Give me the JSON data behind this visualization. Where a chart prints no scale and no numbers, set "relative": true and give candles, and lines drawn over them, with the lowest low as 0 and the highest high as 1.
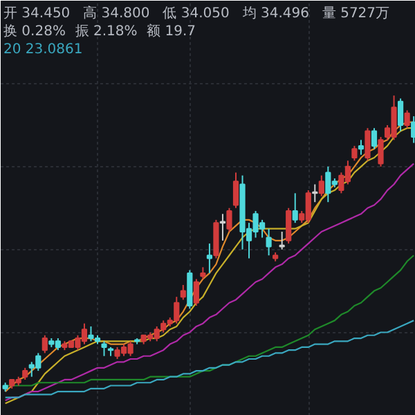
{
  "chart_data": {
    "type": "candlestick",
    "relative": true,
    "grid": true,
    "annotations": [
      "开 34.450",
      "高 34.800",
      "低 34.050",
      "均 34.496",
      "量 5727万",
      "换 0.28%",
      "振 2.18%",
      "额 19.7",
      "20 23.0861"
    ],
    "categories": [
      null,
      null,
      null,
      null,
      null,
      null,
      null,
      null,
      null,
      null,
      null,
      null,
      null,
      null,
      null,
      null,
      null,
      null,
      null,
      null,
      null,
      null,
      null,
      null,
      null,
      null,
      null,
      null,
      null,
      null,
      null,
      null,
      null,
      null,
      null,
      null,
      null,
      null,
      null,
      null,
      null,
      null,
      null,
      null,
      null,
      null,
      null,
      null,
      null,
      null,
      null,
      null,
      null,
      null,
      null,
      null,
      null,
      null,
      null,
      null,
      null,
      null,
      null
    ],
    "ohlc": [
      [
        0.02,
        0.03,
        0,
        0.01
      ],
      [
        0.02,
        0.04,
        0.01,
        0.04
      ],
      [
        0.03,
        0.05,
        0.02,
        0.04
      ],
      [
        0.05,
        0.08,
        0.04,
        0.07
      ],
      [
        0.09,
        0.1,
        0.05,
        0.08
      ],
      [
        0.12,
        0.13,
        0.07,
        0.08
      ],
      [
        0.14,
        0.19,
        0.13,
        0.18
      ],
      [
        0.17,
        0.18,
        0.15,
        0.16
      ],
      [
        0.17,
        0.18,
        0.14,
        0.15
      ],
      [
        0.15,
        0.17,
        0.14,
        0.16
      ],
      [
        0.15,
        0.17,
        0.15,
        0.17
      ],
      [
        0.15,
        0.19,
        0.14,
        0.18
      ],
      [
        0.17,
        0.23,
        0.16,
        0.21
      ],
      [
        0.19,
        0.22,
        0.17,
        0.18
      ],
      [
        0.18,
        0.19,
        0.16,
        0.17
      ],
      [
        0.16,
        0.17,
        0.12,
        0.15
      ],
      [
        0.14,
        0.15,
        0.12,
        0.14
      ],
      [
        0.12,
        0.15,
        0.11,
        0.14
      ],
      [
        0.13,
        0.16,
        0.12,
        0.15
      ],
      [
        0.13,
        0.17,
        0.12,
        0.16
      ],
      [
        0.17,
        0.18,
        0.16,
        0.17
      ],
      [
        0.17,
        0.19,
        0.16,
        0.19
      ],
      [
        0.18,
        0.2,
        0.17,
        0.19
      ],
      [
        0.18,
        0.22,
        0.17,
        0.21
      ],
      [
        0.21,
        0.24,
        0.2,
        0.23
      ],
      [
        0.23,
        0.25,
        0.22,
        0.24
      ],
      [
        0.24,
        0.32,
        0.23,
        0.3
      ],
      [
        0.32,
        0.36,
        0.31,
        0.34
      ],
      [
        0.4,
        0.41,
        0.28,
        0.29
      ],
      [
        0.3,
        0.38,
        0.29,
        0.37
      ],
      [
        0.39,
        0.42,
        0.38,
        0.4
      ],
      [
        0.46,
        0.5,
        0.4,
        0.45
      ],
      [
        0.46,
        0.58,
        0.45,
        0.57
      ],
      [
        0.57,
        0.6,
        0.51,
        0.57
      ],
      [
        0.55,
        0.62,
        0.54,
        0.61
      ],
      [
        0.63,
        0.74,
        0.62,
        0.71
      ],
      [
        0.7,
        0.73,
        0.48,
        0.54
      ],
      [
        0.55,
        0.57,
        0.45,
        0.51
      ],
      [
        0.6,
        0.61,
        0.52,
        0.54
      ],
      [
        0.57,
        0.58,
        0.52,
        0.55
      ],
      [
        0.52,
        0.55,
        0.46,
        0.49
      ],
      [
        0.45,
        0.47,
        0.44,
        0.46
      ],
      [
        0.49,
        0.54,
        0.48,
        0.49
      ],
      [
        0.51,
        0.62,
        0.5,
        0.61
      ],
      [
        0.61,
        0.67,
        0.57,
        0.58
      ],
      [
        0.58,
        0.61,
        0.57,
        0.6
      ],
      [
        0.58,
        0.68,
        0.57,
        0.67
      ],
      [
        0.67,
        0.7,
        0.64,
        0.67
      ],
      [
        0.67,
        0.73,
        0.66,
        0.71
      ],
      [
        0.74,
        0.76,
        0.64,
        0.67
      ],
      [
        0.71,
        0.72,
        0.69,
        0.7
      ],
      [
        0.68,
        0.74,
        0.67,
        0.73
      ],
      [
        0.71,
        0.78,
        0.7,
        0.76
      ],
      [
        0.79,
        0.83,
        0.78,
        0.82
      ],
      [
        0.83,
        0.85,
        0.8,
        0.82
      ],
      [
        0.79,
        0.89,
        0.78,
        0.88
      ],
      [
        0.88,
        0.89,
        0.82,
        0.83
      ],
      [
        0.77,
        0.86,
        0.76,
        0.85
      ],
      [
        0.86,
        0.9,
        0.85,
        0.89
      ],
      [
        0.86,
        1,
        0.85,
        0.96
      ],
      [
        0.98,
        0.99,
        0.88,
        0.9
      ],
      [
        0.9,
        0.95,
        0.89,
        0.94
      ],
      [
        0.91,
        0.93,
        0.84,
        0.86
      ]
    ],
    "colors": [
      "#4fd8dc",
      "#d23c3c",
      "#d23c3c",
      "#d23c3c",
      "#4fd8dc",
      "#4fd8dc",
      "#d23c3c",
      "#4fd8dc",
      "#4fd8dc",
      "#d23c3c",
      "#d23c3c",
      "#d23c3c",
      "#d23c3c",
      "#4fd8dc",
      "#4fd8dc",
      "#4fd8dc",
      "#4fd8dc",
      "#d23c3c",
      "#d23c3c",
      "#d23c3c",
      "#4fd8dc",
      "#d23c3c",
      "#d23c3c",
      "#d23c3c",
      "#d23c3c",
      "#d23c3c",
      "#d23c3c",
      "#d23c3c",
      "#4fd8dc",
      "#d23c3c",
      "#d23c3c",
      "#4fd8dc",
      "#d23c3c",
      "#d0d0d0",
      "#d23c3c",
      "#d23c3c",
      "#4fd8dc",
      "#4fd8dc",
      "#4fd8dc",
      "#4fd8dc",
      "#4fd8dc",
      "#d23c3c",
      "#d0d0d0",
      "#d23c3c",
      "#4fd8dc",
      "#d23c3c",
      "#d23c3c",
      "#d0d0d0",
      "#d23c3c",
      "#4fd8dc",
      "#4fd8dc",
      "#d23c3c",
      "#d23c3c",
      "#d23c3c",
      "#4fd8dc",
      "#d23c3c",
      "#4fd8dc",
      "#d23c3c",
      "#d23c3c",
      "#d23c3c",
      "#4fd8dc",
      "#d23c3c",
      "#4fd8dc"
    ],
    "series": [
      {
        "type": "line",
        "color": "#e08a2c",
        "values": [
          0.0,
          0.02,
          0.04,
          0.05,
          0.07,
          0.09,
          0.11,
          0.13,
          0.15,
          0.16,
          0.17,
          0.18,
          0.18,
          0.18,
          0.17,
          0.17,
          0.16,
          0.16,
          0.16,
          0.17,
          0.17,
          0.18,
          0.19,
          0.2,
          0.21,
          0.23,
          0.24,
          0.27,
          0.31,
          0.35,
          0.38,
          0.4,
          0.43,
          0.49,
          0.54,
          0.56,
          0.58,
          0.58,
          0.57,
          0.55,
          0.52,
          0.51,
          0.51,
          0.52,
          0.54,
          0.56,
          0.58,
          0.62,
          0.65,
          0.68,
          0.7,
          0.72,
          0.73,
          0.76,
          0.79,
          0.81,
          0.82,
          0.84,
          0.85,
          0.88,
          0.9,
          0.91,
          0.91
        ]
      },
      {
        "type": "line",
        "color": "#c8b02a",
        "values": [
          -0.04,
          -0.03,
          -0.02,
          -0.01,
          0.0,
          0.03,
          0.06,
          0.08,
          0.1,
          0.12,
          0.13,
          0.14,
          0.15,
          0.16,
          0.17,
          0.17,
          0.17,
          0.17,
          0.17,
          0.17,
          0.17,
          0.17,
          0.18,
          0.18,
          0.19,
          0.21,
          0.22,
          0.25,
          0.27,
          0.3,
          0.32,
          0.36,
          0.4,
          0.43,
          0.46,
          0.49,
          0.52,
          0.54,
          0.55,
          0.55,
          0.55,
          0.55,
          0.55,
          0.55,
          0.55,
          0.56,
          0.57,
          0.61,
          0.65,
          0.67,
          0.68,
          0.7,
          0.71,
          0.74,
          0.76,
          0.78,
          0.79,
          0.81,
          0.83,
          0.86,
          0.88,
          0.89,
          0.89
        ]
      },
      {
        "type": "line",
        "color": "#b02aa8",
        "values": [
          -0.03,
          -0.02,
          -0.02,
          -0.01,
          0.0,
          0.0,
          0.01,
          0.02,
          0.03,
          0.04,
          0.04,
          0.05,
          0.06,
          0.07,
          0.08,
          0.08,
          0.09,
          0.1,
          0.1,
          0.11,
          0.11,
          0.12,
          0.12,
          0.13,
          0.14,
          0.16,
          0.17,
          0.19,
          0.2,
          0.22,
          0.23,
          0.25,
          0.26,
          0.28,
          0.3,
          0.31,
          0.33,
          0.35,
          0.37,
          0.38,
          0.4,
          0.42,
          0.43,
          0.45,
          0.46,
          0.48,
          0.5,
          0.52,
          0.54,
          0.55,
          0.56,
          0.57,
          0.58,
          0.59,
          0.6,
          0.62,
          0.63,
          0.65,
          0.68,
          0.7,
          0.73,
          0.75,
          0.77
        ]
      },
      {
        "type": "line",
        "color": "#1f8a2a",
        "values": [
          0.02,
          0.02,
          0.02,
          0.02,
          0.02,
          0.03,
          0.03,
          0.03,
          0.03,
          0.03,
          0.03,
          0.03,
          0.03,
          0.04,
          0.04,
          0.04,
          0.04,
          0.04,
          0.04,
          0.04,
          0.04,
          0.04,
          0.05,
          0.05,
          0.05,
          0.05,
          0.05,
          0.05,
          0.05,
          0.06,
          0.07,
          0.07,
          0.08,
          0.09,
          0.09,
          0.1,
          0.11,
          0.12,
          0.12,
          0.13,
          0.14,
          0.15,
          0.15,
          0.16,
          0.17,
          0.18,
          0.19,
          0.21,
          0.22,
          0.23,
          0.24,
          0.26,
          0.27,
          0.29,
          0.3,
          0.32,
          0.34,
          0.35,
          0.37,
          0.39,
          0.41,
          0.44,
          0.46
        ]
      },
      {
        "type": "line",
        "color": "#3aa8c0",
        "values": [
          -0.02,
          -0.02,
          -0.02,
          -0.01,
          -0.01,
          -0.01,
          -0.01,
          -0.01,
          0.0,
          0.0,
          0.0,
          0.0,
          0.0,
          0.01,
          0.01,
          0.01,
          0.02,
          0.02,
          0.02,
          0.02,
          0.03,
          0.03,
          0.03,
          0.04,
          0.04,
          0.05,
          0.05,
          0.06,
          0.06,
          0.07,
          0.07,
          0.08,
          0.08,
          0.09,
          0.09,
          0.1,
          0.1,
          0.11,
          0.11,
          0.12,
          0.12,
          0.13,
          0.13,
          0.14,
          0.14,
          0.15,
          0.15,
          0.16,
          0.16,
          0.16,
          0.17,
          0.17,
          0.17,
          0.18,
          0.18,
          0.19,
          0.19,
          0.2,
          0.2,
          0.21,
          0.22,
          0.23,
          0.24
        ]
      }
    ]
  }
}
